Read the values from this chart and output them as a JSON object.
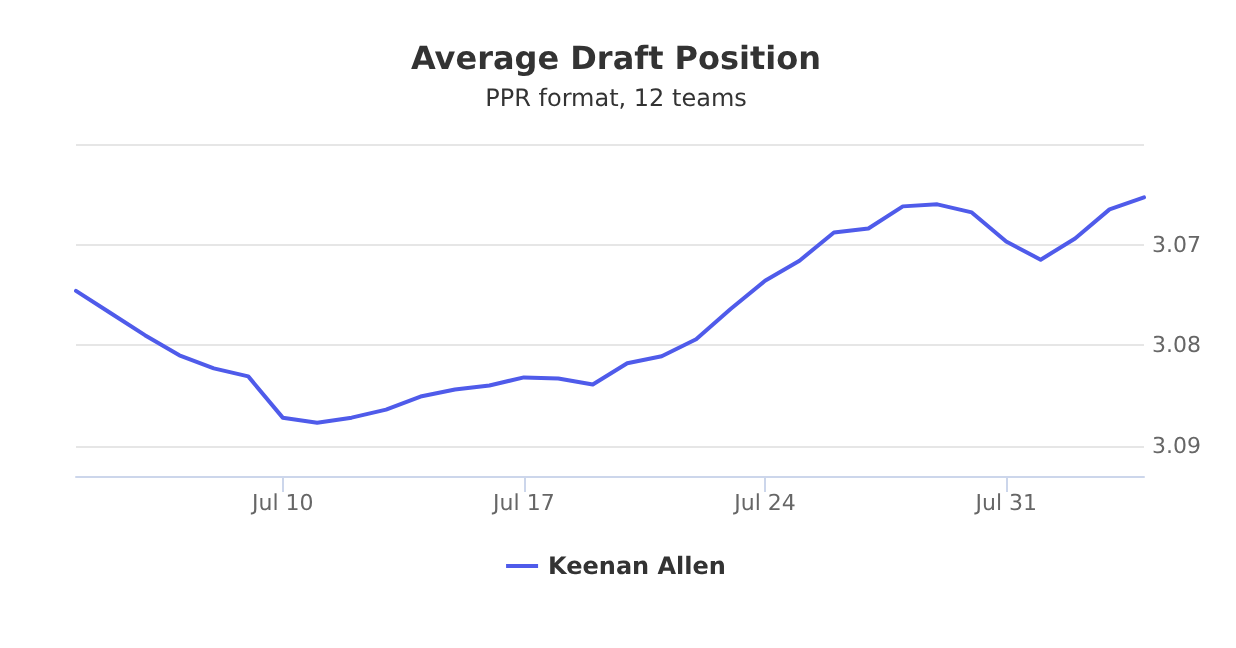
{
  "chart_data": {
    "type": "line",
    "title": "Average Draft Position",
    "subtitle": "PPR format, 12 teams",
    "x": [
      "--07-04",
      "--07-05",
      "--07-06",
      "--07-07",
      "--07-08",
      "--07-09",
      "--07-10",
      "--07-11",
      "--07-12",
      "--07-13",
      "--07-14",
      "--07-15",
      "--07-16",
      "--07-17",
      "--07-18",
      "--07-19",
      "--07-20",
      "--07-21",
      "--07-22",
      "--07-23",
      "--07-24",
      "--07-25",
      "--07-26",
      "--07-27",
      "--07-28",
      "--07-29",
      "--07-30",
      "--07-31",
      "--08-01",
      "--08-02",
      "--08-03",
      "--08-04"
    ],
    "series": [
      {
        "name": "Keenan Allen",
        "color": "#4f5bea",
        "values": [
          3.0746,
          3.0768,
          3.079,
          3.081,
          3.0823,
          3.0831,
          3.0872,
          3.0877,
          3.0872,
          3.0864,
          3.0851,
          3.0844,
          3.084,
          3.0832,
          3.0833,
          3.0839,
          3.0818,
          3.0811,
          3.0794,
          3.0764,
          3.0736,
          3.0716,
          3.0688,
          3.0684,
          3.0662,
          3.066,
          3.0668,
          3.0697,
          3.0715,
          3.0694,
          3.0665,
          3.0653
        ]
      }
    ],
    "xlim": [
      "--07-04",
      "--08-04"
    ],
    "xticks": [
      {
        "value": "--07-10",
        "label": "Jul 10"
      },
      {
        "value": "--07-17",
        "label": "Jul 17"
      },
      {
        "value": "--07-24",
        "label": "Jul 24"
      },
      {
        "value": "--07-31",
        "label": "Jul 31"
      }
    ],
    "ylim": [
      3.093,
      3.06
    ],
    "yticks": [
      {
        "value": 3.06,
        "label": null
      },
      3.07,
      3.08,
      3.09
    ],
    "grid": "y",
    "legend": "bottom",
    "marker": "none",
    "line_style": "solid"
  }
}
